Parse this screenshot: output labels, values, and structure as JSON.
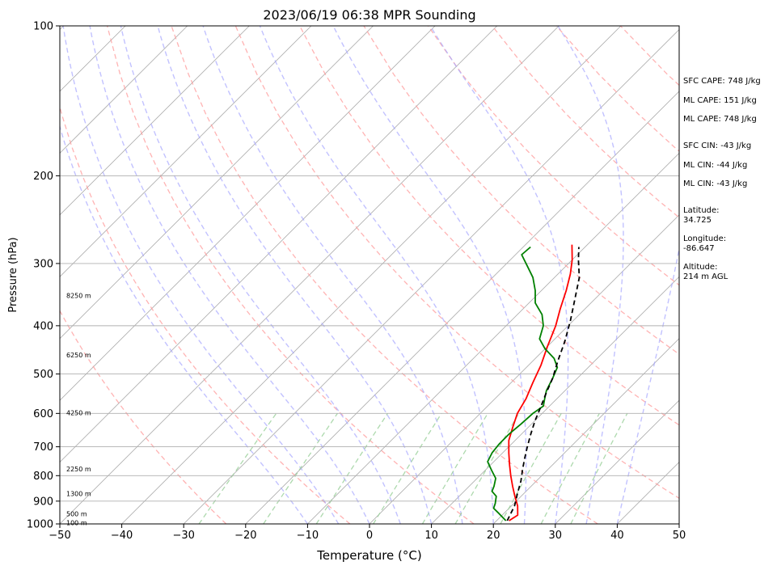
{
  "chart_data": {
    "type": "line",
    "title": "2023/06/19 06:38 MPR Sounding",
    "xlabel": "Temperature (°C)",
    "ylabel": "Pressure (hPa)",
    "xlim": [
      -50,
      50
    ],
    "ylim": [
      1000,
      100
    ],
    "y_scale": "log",
    "xticks": [
      -50,
      -40,
      -30,
      -20,
      -10,
      0,
      10,
      20,
      30,
      40,
      50
    ],
    "yticks": [
      100,
      200,
      300,
      400,
      500,
      600,
      700,
      800,
      900,
      1000
    ],
    "grid": true,
    "height_labels": [
      {
        "label": "8250 m",
        "pressure": 348
      },
      {
        "label": "6250 m",
        "pressure": 458
      },
      {
        "label": "4250 m",
        "pressure": 598
      },
      {
        "label": "2250 m",
        "pressure": 776
      },
      {
        "label": "1300 m",
        "pressure": 870
      },
      {
        "label": "500 m",
        "pressure": 955
      },
      {
        "label": "100 m",
        "pressure": 995
      }
    ],
    "series": [
      {
        "color": "#ff0000",
        "points": [
          [
            22,
            985
          ],
          [
            22.5,
            960
          ],
          [
            21,
            920
          ],
          [
            19,
            880
          ],
          [
            17,
            840
          ],
          [
            15,
            800
          ],
          [
            13,
            760
          ],
          [
            11,
            720
          ],
          [
            9,
            680
          ],
          [
            7.5,
            640
          ],
          [
            6,
            600
          ],
          [
            5,
            560
          ],
          [
            3.5,
            520
          ],
          [
            2,
            480
          ],
          [
            0,
            440
          ],
          [
            -2,
            400
          ],
          [
            -4,
            370
          ],
          [
            -6,
            340
          ],
          [
            -8,
            315
          ],
          [
            -10,
            295
          ],
          [
            -12.5,
            275
          ]
        ]
      },
      {
        "color": "#008000",
        "points": [
          [
            21.5,
            985
          ],
          [
            19,
            950
          ],
          [
            17.5,
            930
          ],
          [
            17,
            910
          ],
          [
            16,
            880
          ],
          [
            14.5,
            860
          ],
          [
            14,
            840
          ],
          [
            13,
            810
          ],
          [
            11,
            780
          ],
          [
            9,
            750
          ],
          [
            8.3,
            720
          ],
          [
            8,
            690
          ],
          [
            8,
            660
          ],
          [
            8.3,
            630
          ],
          [
            8.5,
            600
          ],
          [
            9,
            580
          ],
          [
            8,
            560
          ],
          [
            7,
            540
          ],
          [
            6,
            510
          ],
          [
            5,
            485
          ],
          [
            3,
            465
          ],
          [
            0,
            445
          ],
          [
            -2.5,
            425
          ],
          [
            -4,
            400
          ],
          [
            -6,
            380
          ],
          [
            -9,
            360
          ],
          [
            -11,
            340
          ],
          [
            -13.5,
            320
          ],
          [
            -16,
            305
          ],
          [
            -19,
            288
          ],
          [
            -18.8,
            278
          ]
        ]
      },
      {
        "color": "#000000",
        "dashed": true,
        "points": [
          [
            21.7,
            985
          ],
          [
            20.5,
            920
          ],
          [
            19,
            870
          ],
          [
            17.5,
            820
          ],
          [
            16,
            780
          ],
          [
            14.5,
            740
          ],
          [
            13,
            700
          ],
          [
            11.5,
            660
          ],
          [
            10,
            620
          ],
          [
            9,
            590
          ],
          [
            7.5,
            550
          ],
          [
            6,
            510
          ],
          [
            4,
            470
          ],
          [
            2,
            430
          ],
          [
            -0.5,
            390
          ],
          [
            -3.5,
            350
          ],
          [
            -6,
            320
          ],
          [
            -9,
            295
          ],
          [
            -11,
            278
          ]
        ]
      }
    ]
  },
  "side_info": {
    "sfc_cape": "SFC CAPE: 748 J/kg",
    "ml_cape_1": "ML CAPE: 151 J/kg",
    "ml_cape_2": "ML CAPE: 748 J/kg",
    "sfc_cin": "SFC CIN: -43 J/kg",
    "ml_cin_1": "ML CIN: -44 J/kg",
    "ml_cin_2": "ML CIN: -43 J/kg",
    "latitude": "Latitude:\n34.725",
    "longitude": "Longitude:\n-86.647",
    "altitude": "Altitude:\n214 m AGL"
  }
}
